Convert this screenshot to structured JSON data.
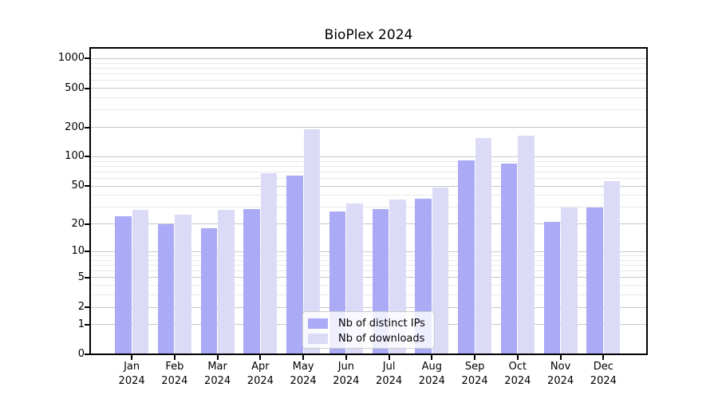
{
  "chart_data": {
    "type": "bar",
    "title": "BioPlex 2024",
    "categories": [
      "Jan 2024",
      "Feb 2024",
      "Mar 2024",
      "Apr 2024",
      "May 2024",
      "Jun 2024",
      "Jul 2024",
      "Aug 2024",
      "Sep 2024",
      "Oct 2024",
      "Nov 2024",
      "Dec 2024"
    ],
    "series": [
      {
        "name": "Nb of distinct IPs",
        "color": "#aaaaf6",
        "values": [
          24,
          20,
          18,
          29,
          64,
          27,
          29,
          37,
          92,
          85,
          21,
          30
        ]
      },
      {
        "name": "Nb of downloads",
        "color": "#dbdbf8",
        "values": [
          28,
          25,
          28,
          68,
          190,
          33,
          36,
          48,
          155,
          165,
          30,
          56
        ]
      }
    ],
    "xlabel": "",
    "ylabel": "",
    "yscale": "log1p",
    "yticks": [
      0,
      1,
      2,
      5,
      10,
      20,
      50,
      100,
      200,
      500,
      1000
    ],
    "ylim": [
      0,
      1285
    ],
    "grid": "horizontal",
    "legend_position": "lower-center-inside",
    "colors": {
      "axis": "#000000",
      "grid_major": "#c8c8c8",
      "grid_minor": "#e9e9e9",
      "legend_border": "#cccccc"
    }
  }
}
